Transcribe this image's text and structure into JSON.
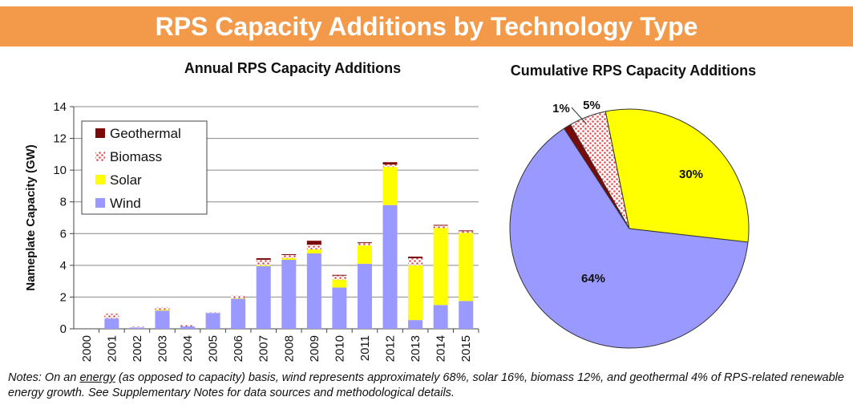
{
  "banner": {
    "title": "RPS Capacity Additions by Technology Type"
  },
  "notes": {
    "prefix": "Notes: On an ",
    "emphasis": "energy",
    "suffix": " (as opposed to capacity) basis, wind represents approximately 68%, solar 16%, biomass 12%, and geothermal 4% of RPS-related renewable energy growth. See Supplementary Notes for data sources and methodological details."
  },
  "colors": {
    "wind": "#9999ff",
    "solar": "#ffff00",
    "biomass": "#e05050",
    "geothermal": "#7a0a0a"
  },
  "chart_data": [
    {
      "type": "bar",
      "stacked": true,
      "title": "Annual RPS Capacity Additions",
      "ylabel": "Nameplate Capacity (GW)",
      "xlabel": "",
      "ylim": [
        0,
        14
      ],
      "yticks": [
        0,
        2,
        4,
        6,
        8,
        10,
        12,
        14
      ],
      "grid": true,
      "legend": "top-left",
      "categories": [
        "2000",
        "2001",
        "2002",
        "2003",
        "2004",
        "2005",
        "2006",
        "2007",
        "2008",
        "2009",
        "2010",
        "2011",
        "2012",
        "2013",
        "2014",
        "2015"
      ],
      "series": [
        {
          "name": "Wind",
          "values": [
            0,
            0.65,
            0.08,
            1.15,
            0.15,
            1.0,
            1.9,
            3.95,
            4.35,
            4.75,
            2.6,
            4.1,
            7.8,
            0.55,
            1.5,
            1.75
          ]
        },
        {
          "name": "Solar",
          "values": [
            0,
            0.0,
            0.0,
            0.05,
            0.0,
            0.0,
            0.02,
            0.05,
            0.1,
            0.25,
            0.5,
            1.15,
            2.4,
            3.45,
            4.85,
            4.3
          ]
        },
        {
          "name": "Biomass",
          "values": [
            0,
            0.3,
            0.07,
            0.15,
            0.1,
            0.05,
            0.18,
            0.35,
            0.2,
            0.3,
            0.25,
            0.15,
            0.15,
            0.45,
            0.15,
            0.1
          ]
        },
        {
          "name": "Geothermal",
          "values": [
            0,
            0.0,
            0.0,
            0.0,
            0.0,
            0.0,
            0.0,
            0.1,
            0.05,
            0.25,
            0.05,
            0.05,
            0.15,
            0.1,
            0.05,
            0.05
          ]
        }
      ],
      "legend_order": [
        "Geothermal",
        "Biomass",
        "Solar",
        "Wind"
      ]
    },
    {
      "type": "pie",
      "title": "Cumulative RPS Capacity Additions",
      "slices": [
        {
          "name": "Wind",
          "value": 64,
          "label": "64%"
        },
        {
          "name": "Geothermal",
          "value": 1,
          "label": "1%"
        },
        {
          "name": "Biomass",
          "value": 5,
          "label": "5%"
        },
        {
          "name": "Solar",
          "value": 30,
          "label": "30%"
        }
      ]
    }
  ]
}
